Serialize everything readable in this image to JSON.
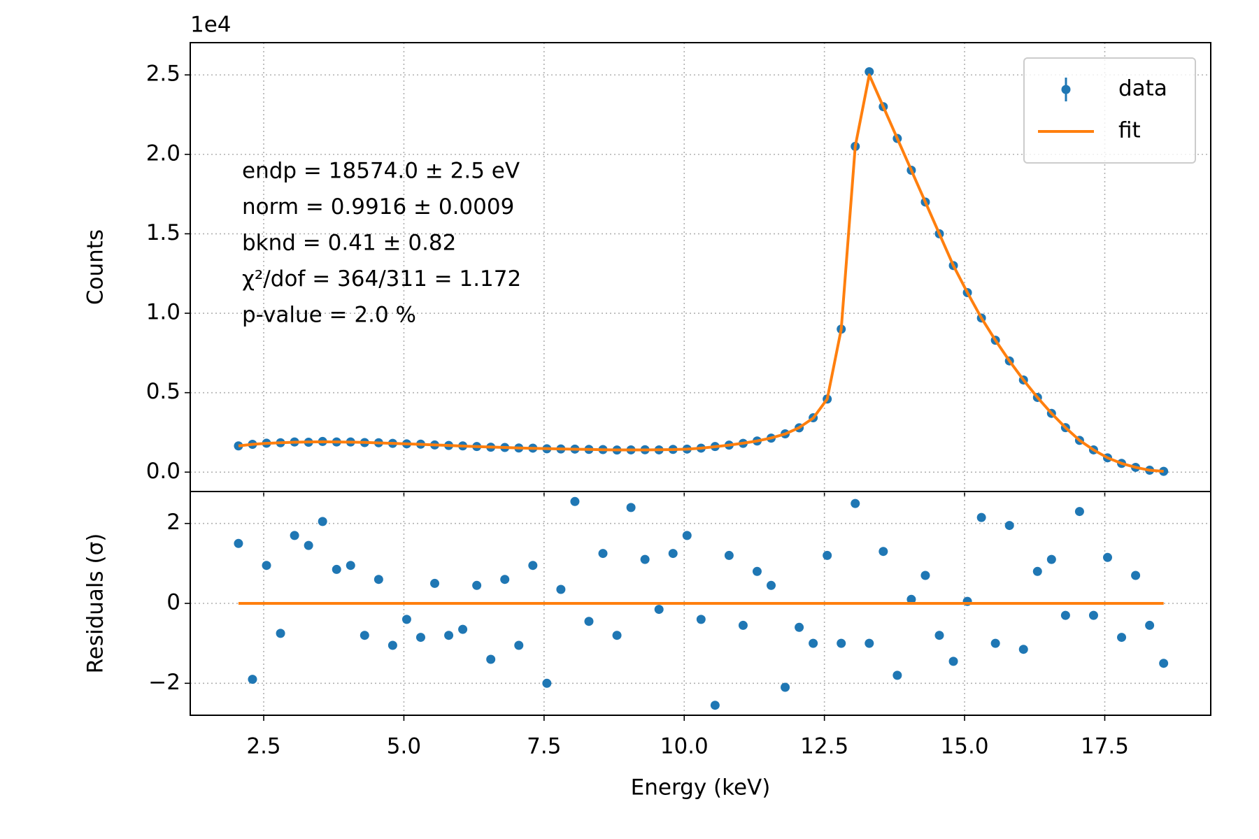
{
  "chart_data": [
    {
      "type": "scatter",
      "ylabel": "Counts",
      "offset_label": "1e4",
      "xlim": [
        1.19,
        19.39
      ],
      "ylim": [
        -0.122,
        2.703
      ],
      "xticks": [
        2.5,
        {
          "value": 5,
          "label": "5.0"
        },
        7.5,
        {
          "value": 10,
          "label": "10.0"
        },
        12.5,
        {
          "value": 15,
          "label": "15.0"
        },
        17.5
      ],
      "yticks": [
        {
          "value": 0,
          "label": "0.0"
        },
        0.5,
        {
          "value": 1,
          "label": "1.0"
        },
        1.5,
        {
          "value": 2,
          "label": "2.0"
        },
        2.5
      ],
      "grid": true,
      "legend": "upper right",
      "annotations": [
        "endp = 18574.0 ± 2.5 eV",
        "norm = 0.9916 ± 0.0009",
        "bknd = 0.41 ± 0.82",
        "χ²/dof = 364/311 = 1.172",
        "p-value = 2.0 %"
      ],
      "x": [
        2.05,
        2.3,
        2.55,
        2.8,
        3.05,
        3.3,
        3.55,
        3.8,
        4.05,
        4.3,
        4.55,
        4.8,
        5.05,
        5.3,
        5.55,
        5.8,
        6.05,
        6.3,
        6.55,
        6.8,
        7.05,
        7.3,
        7.55,
        7.8,
        8.05,
        8.3,
        8.55,
        8.8,
        9.05,
        9.3,
        9.55,
        9.8,
        10.05,
        10.3,
        10.55,
        10.8,
        11.05,
        11.3,
        11.55,
        11.8,
        12.05,
        12.3,
        12.55,
        12.8,
        13.05,
        13.3,
        13.55,
        13.8,
        14.05,
        14.3,
        14.55,
        14.8,
        15.05,
        15.3,
        15.55,
        15.8,
        16.05,
        16.3,
        16.55,
        16.8,
        17.05,
        17.3,
        17.55,
        17.8,
        18.05,
        18.3,
        18.55
      ],
      "series": [
        {
          "name": "data",
          "color": "#1f77b4",
          "style": "markers",
          "values": [
            0.165,
            0.175,
            0.182,
            0.185,
            0.19,
            0.188,
            0.193,
            0.19,
            0.19,
            0.186,
            0.185,
            0.181,
            0.178,
            0.176,
            0.171,
            0.168,
            0.165,
            0.161,
            0.157,
            0.155,
            0.152,
            0.151,
            0.147,
            0.146,
            0.145,
            0.143,
            0.142,
            0.139,
            0.14,
            0.141,
            0.14,
            0.143,
            0.145,
            0.151,
            0.161,
            0.17,
            0.181,
            0.196,
            0.214,
            0.241,
            0.279,
            0.342,
            0.46,
            0.9,
            2.05,
            2.52,
            2.3,
            2.1,
            1.9,
            1.7,
            1.5,
            1.3,
            1.13,
            0.97,
            0.83,
            0.7,
            0.58,
            0.47,
            0.37,
            0.28,
            0.2,
            0.14,
            0.09,
            0.055,
            0.03,
            0.012,
            0.005
          ]
        },
        {
          "name": "fit",
          "color": "#ff7f0e",
          "style": "line",
          "values": [
            0.165,
            0.175,
            0.181,
            0.185,
            0.188,
            0.19,
            0.191,
            0.19,
            0.189,
            0.187,
            0.184,
            0.181,
            0.178,
            0.175,
            0.171,
            0.168,
            0.164,
            0.161,
            0.158,
            0.155,
            0.152,
            0.15,
            0.148,
            0.146,
            0.144,
            0.143,
            0.141,
            0.14,
            0.14,
            0.14,
            0.141,
            0.142,
            0.145,
            0.151,
            0.16,
            0.17,
            0.182,
            0.196,
            0.215,
            0.24,
            0.28,
            0.34,
            0.46,
            0.9,
            2.05,
            2.5,
            2.3,
            2.1,
            1.9,
            1.7,
            1.5,
            1.3,
            1.13,
            0.97,
            0.83,
            0.7,
            0.58,
            0.47,
            0.37,
            0.28,
            0.2,
            0.14,
            0.09,
            0.055,
            0.03,
            0.012,
            0.005
          ]
        }
      ]
    },
    {
      "type": "scatter",
      "xlabel": "Energy (keV)",
      "ylabel": "Residuals (σ)",
      "xlim": [
        1.19,
        19.39
      ],
      "ylim": [
        -2.8,
        2.8
      ],
      "xticks": [
        2.5,
        {
          "value": 5,
          "label": "5.0"
        },
        7.5,
        {
          "value": 10,
          "label": "10.0"
        },
        12.5,
        {
          "value": 15,
          "label": "15.0"
        },
        17.5
      ],
      "yticks": [
        {
          "value": -2,
          "label": "−2"
        },
        0,
        2
      ],
      "grid": true,
      "x": [
        2.05,
        2.3,
        2.55,
        2.8,
        3.05,
        3.3,
        3.55,
        3.8,
        4.05,
        4.3,
        4.55,
        4.8,
        5.05,
        5.3,
        5.55,
        5.8,
        6.05,
        6.3,
        6.55,
        6.8,
        7.05,
        7.3,
        7.55,
        7.8,
        8.05,
        8.3,
        8.55,
        8.8,
        9.05,
        9.3,
        9.55,
        9.8,
        10.05,
        10.3,
        10.55,
        10.8,
        11.05,
        11.3,
        11.55,
        11.8,
        12.05,
        12.3,
        12.55,
        12.8,
        13.05,
        13.3,
        13.55,
        13.8,
        14.05,
        14.3,
        14.55,
        14.8,
        15.05,
        15.3,
        15.55,
        15.8,
        16.05,
        16.3,
        16.55,
        16.8,
        17.05,
        17.3,
        17.55,
        17.8,
        18.05,
        18.3,
        18.55
      ],
      "series": [
        {
          "color": "#1f77b4",
          "style": "markers",
          "values": [
            1.5,
            -1.9,
            0.95,
            -0.75,
            1.7,
            1.45,
            2.05,
            0.85,
            0.95,
            -0.8,
            0.6,
            -1.05,
            -0.4,
            -0.85,
            0.5,
            -0.8,
            -0.65,
            0.45,
            -1.4,
            0.6,
            -1.05,
            0.95,
            -2.0,
            0.35,
            2.55,
            -0.45,
            1.25,
            -0.8,
            2.4,
            1.1,
            -0.15,
            1.25,
            1.7,
            -0.4,
            -2.55,
            1.2,
            -0.55,
            0.8,
            0.45,
            -2.1,
            -0.6,
            -1.0,
            1.2,
            -1.0,
            2.5,
            -1.0,
            1.3,
            -1.8,
            0.1,
            0.7,
            -0.8,
            -1.45,
            0.05,
            2.15,
            -1.0,
            1.95,
            -1.15,
            0.8,
            1.1,
            -0.3,
            2.3,
            -0.3,
            1.15,
            -0.85,
            0.7,
            -0.55,
            -1.5
          ]
        },
        {
          "color": "#ff7f0e",
          "style": "line",
          "x": [
            2.05,
            18.55
          ],
          "values": [
            0,
            0
          ]
        }
      ]
    }
  ]
}
